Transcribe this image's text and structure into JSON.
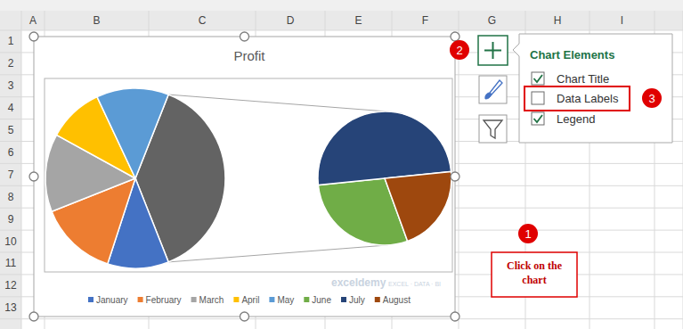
{
  "spreadsheet": {
    "columns": [
      "A",
      "B",
      "C",
      "D",
      "E",
      "F",
      "G",
      "H",
      "I"
    ],
    "rows": [
      1,
      2,
      3,
      4,
      5,
      6,
      7,
      8,
      9,
      10,
      11,
      12,
      13
    ]
  },
  "chart_data": {
    "type": "pie_of_pie",
    "title": "Profit",
    "categories": [
      "January",
      "February",
      "March",
      "April",
      "May",
      "June",
      "July",
      "August"
    ],
    "values": [
      11,
      14,
      14,
      10,
      13,
      11,
      19,
      8
    ],
    "colors": [
      "#4472c4",
      "#ed7d31",
      "#a5a5a5",
      "#ffc000",
      "#5b9bd5",
      "#70ad47",
      "#264478",
      "#9e480e"
    ],
    "legend": "bottom",
    "data_labels": false
  },
  "chart_elements": {
    "title": "Chart Elements",
    "items": [
      {
        "label": "Chart Title",
        "checked": true
      },
      {
        "label": "Data Labels",
        "checked": false
      },
      {
        "label": "Legend",
        "checked": true
      }
    ]
  },
  "callouts": [
    {
      "number": "1",
      "lines": [
        "Click on the",
        "chart"
      ]
    },
    {
      "number": "2"
    },
    {
      "number": "3"
    }
  ],
  "watermark": {
    "brand": "exceldemy",
    "tagline": "EXCEL · DATA · BI"
  }
}
